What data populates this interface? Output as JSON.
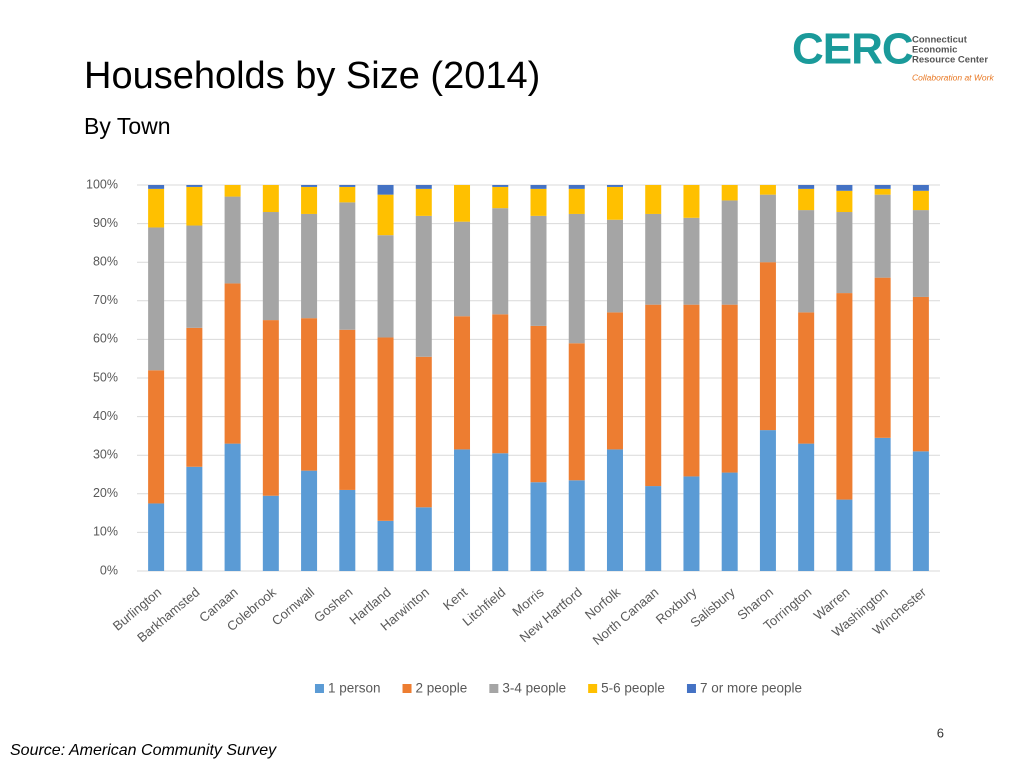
{
  "header": {
    "title": "Households by Size (2014)",
    "subtitle": "By Town"
  },
  "logo": {
    "mark": "CERC",
    "name_lines": [
      "Connecticut",
      "Economic",
      "Resource Center"
    ],
    "tagline": "Collaboration at Work"
  },
  "chart_data": {
    "type": "stacked_bar",
    "categories": [
      "Burlington",
      "Barkhamsted",
      "Canaan",
      "Colebrook",
      "Cornwall",
      "Goshen",
      "Hartland",
      "Harwinton",
      "Kent",
      "Litchfield",
      "Morris",
      "New Hartford",
      "Norfolk",
      "North Canaan",
      "Roxbury",
      "Salisbury",
      "Sharon",
      "Torrington",
      "Warren",
      "Washington",
      "Winchester"
    ],
    "series": [
      {
        "name": "1 person",
        "color": "#5b9bd5",
        "values": [
          17.5,
          27,
          33,
          19.5,
          26,
          21,
          13,
          16.5,
          31.5,
          30.5,
          23,
          23.5,
          31.5,
          22,
          24.5,
          25.5,
          36.5,
          33,
          18.5,
          34.5,
          31
        ]
      },
      {
        "name": "2 people",
        "color": "#ed7d31",
        "values": [
          34.5,
          36,
          41.5,
          45.5,
          39.5,
          41.5,
          47.5,
          39,
          34.5,
          36,
          40.5,
          35.5,
          35.5,
          47,
          44.5,
          43.5,
          43.5,
          34,
          53.5,
          41.5,
          40
        ]
      },
      {
        "name": "3-4 people",
        "color": "#a5a5a5",
        "values": [
          37,
          26.5,
          22.5,
          28,
          27,
          33,
          26.5,
          36.5,
          24.5,
          27.5,
          28.5,
          33.5,
          24,
          23.5,
          22.5,
          27,
          17.5,
          26.5,
          21,
          21.5,
          22.5
        ]
      },
      {
        "name": "5-6 people",
        "color": "#ffc000",
        "values": [
          10,
          10,
          3,
          7,
          7,
          4,
          10.5,
          7,
          9.5,
          5.5,
          7,
          6.5,
          8.5,
          7.5,
          8.5,
          4,
          2.5,
          5.5,
          5.5,
          1.5,
          5
        ]
      },
      {
        "name": "7 or more people",
        "color": "#4472c4",
        "values": [
          1,
          0.5,
          0,
          0,
          0.5,
          0.5,
          2.5,
          1,
          0,
          0.5,
          1,
          1,
          0.5,
          0,
          0,
          0,
          0,
          1,
          1.5,
          1,
          1.5
        ]
      }
    ],
    "ylim": [
      0,
      100
    ],
    "yticks": [
      {
        "value": 0,
        "label": "0%"
      },
      {
        "value": 10,
        "label": "10%"
      },
      {
        "value": 20,
        "label": "20%"
      },
      {
        "value": 30,
        "label": "30%"
      },
      {
        "value": 40,
        "label": "40%"
      },
      {
        "value": 50,
        "label": "50%"
      },
      {
        "value": 60,
        "label": "60%"
      },
      {
        "value": 70,
        "label": "70%"
      },
      {
        "value": 80,
        "label": "80%"
      },
      {
        "value": 90,
        "label": "90%"
      },
      {
        "value": 100,
        "label": "100%"
      }
    ],
    "grid": true,
    "legend": "bottom"
  },
  "footer": {
    "source": "Source: American Community Survey",
    "page_number": "6"
  }
}
